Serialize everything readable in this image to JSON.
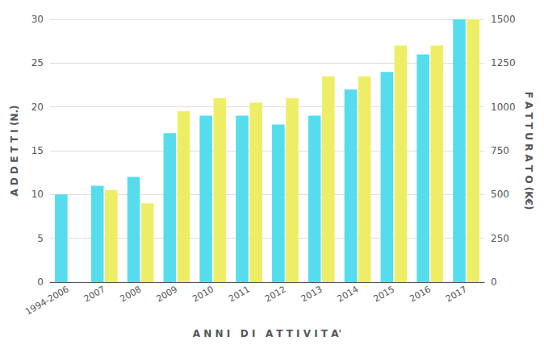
{
  "chart_data": {
    "type": "bar",
    "categories": [
      "1994-2006",
      "2007",
      "2008",
      "2009",
      "2010",
      "2011",
      "2012",
      "2013",
      "2014",
      "2015",
      "2016",
      "2017"
    ],
    "series": [
      {
        "color": "#55DDEE",
        "values": [
          10,
          11,
          12,
          17,
          19,
          19,
          18,
          19,
          22,
          24,
          26,
          30
        ]
      },
      {
        "color": "#EEEE66",
        "values": [
          0,
          525,
          450,
          975,
          1050,
          1025,
          1050,
          1175,
          1175,
          1350,
          1350,
          1500
        ],
        "axis": "y2"
      }
    ],
    "xlabel": "A N N I   D I   A T T I V I T A'",
    "ylabel": "A D D E T T I (N.)",
    "y2label": "F A T T U R A T O (K€)",
    "ylim": [
      0,
      30
    ],
    "yticks": [
      0,
      5,
      10,
      15,
      20,
      25,
      30
    ],
    "y2lim": [
      0,
      1500
    ],
    "y2ticks": [
      0,
      250,
      500,
      750,
      1000,
      1250,
      1500
    ],
    "grid": true
  }
}
